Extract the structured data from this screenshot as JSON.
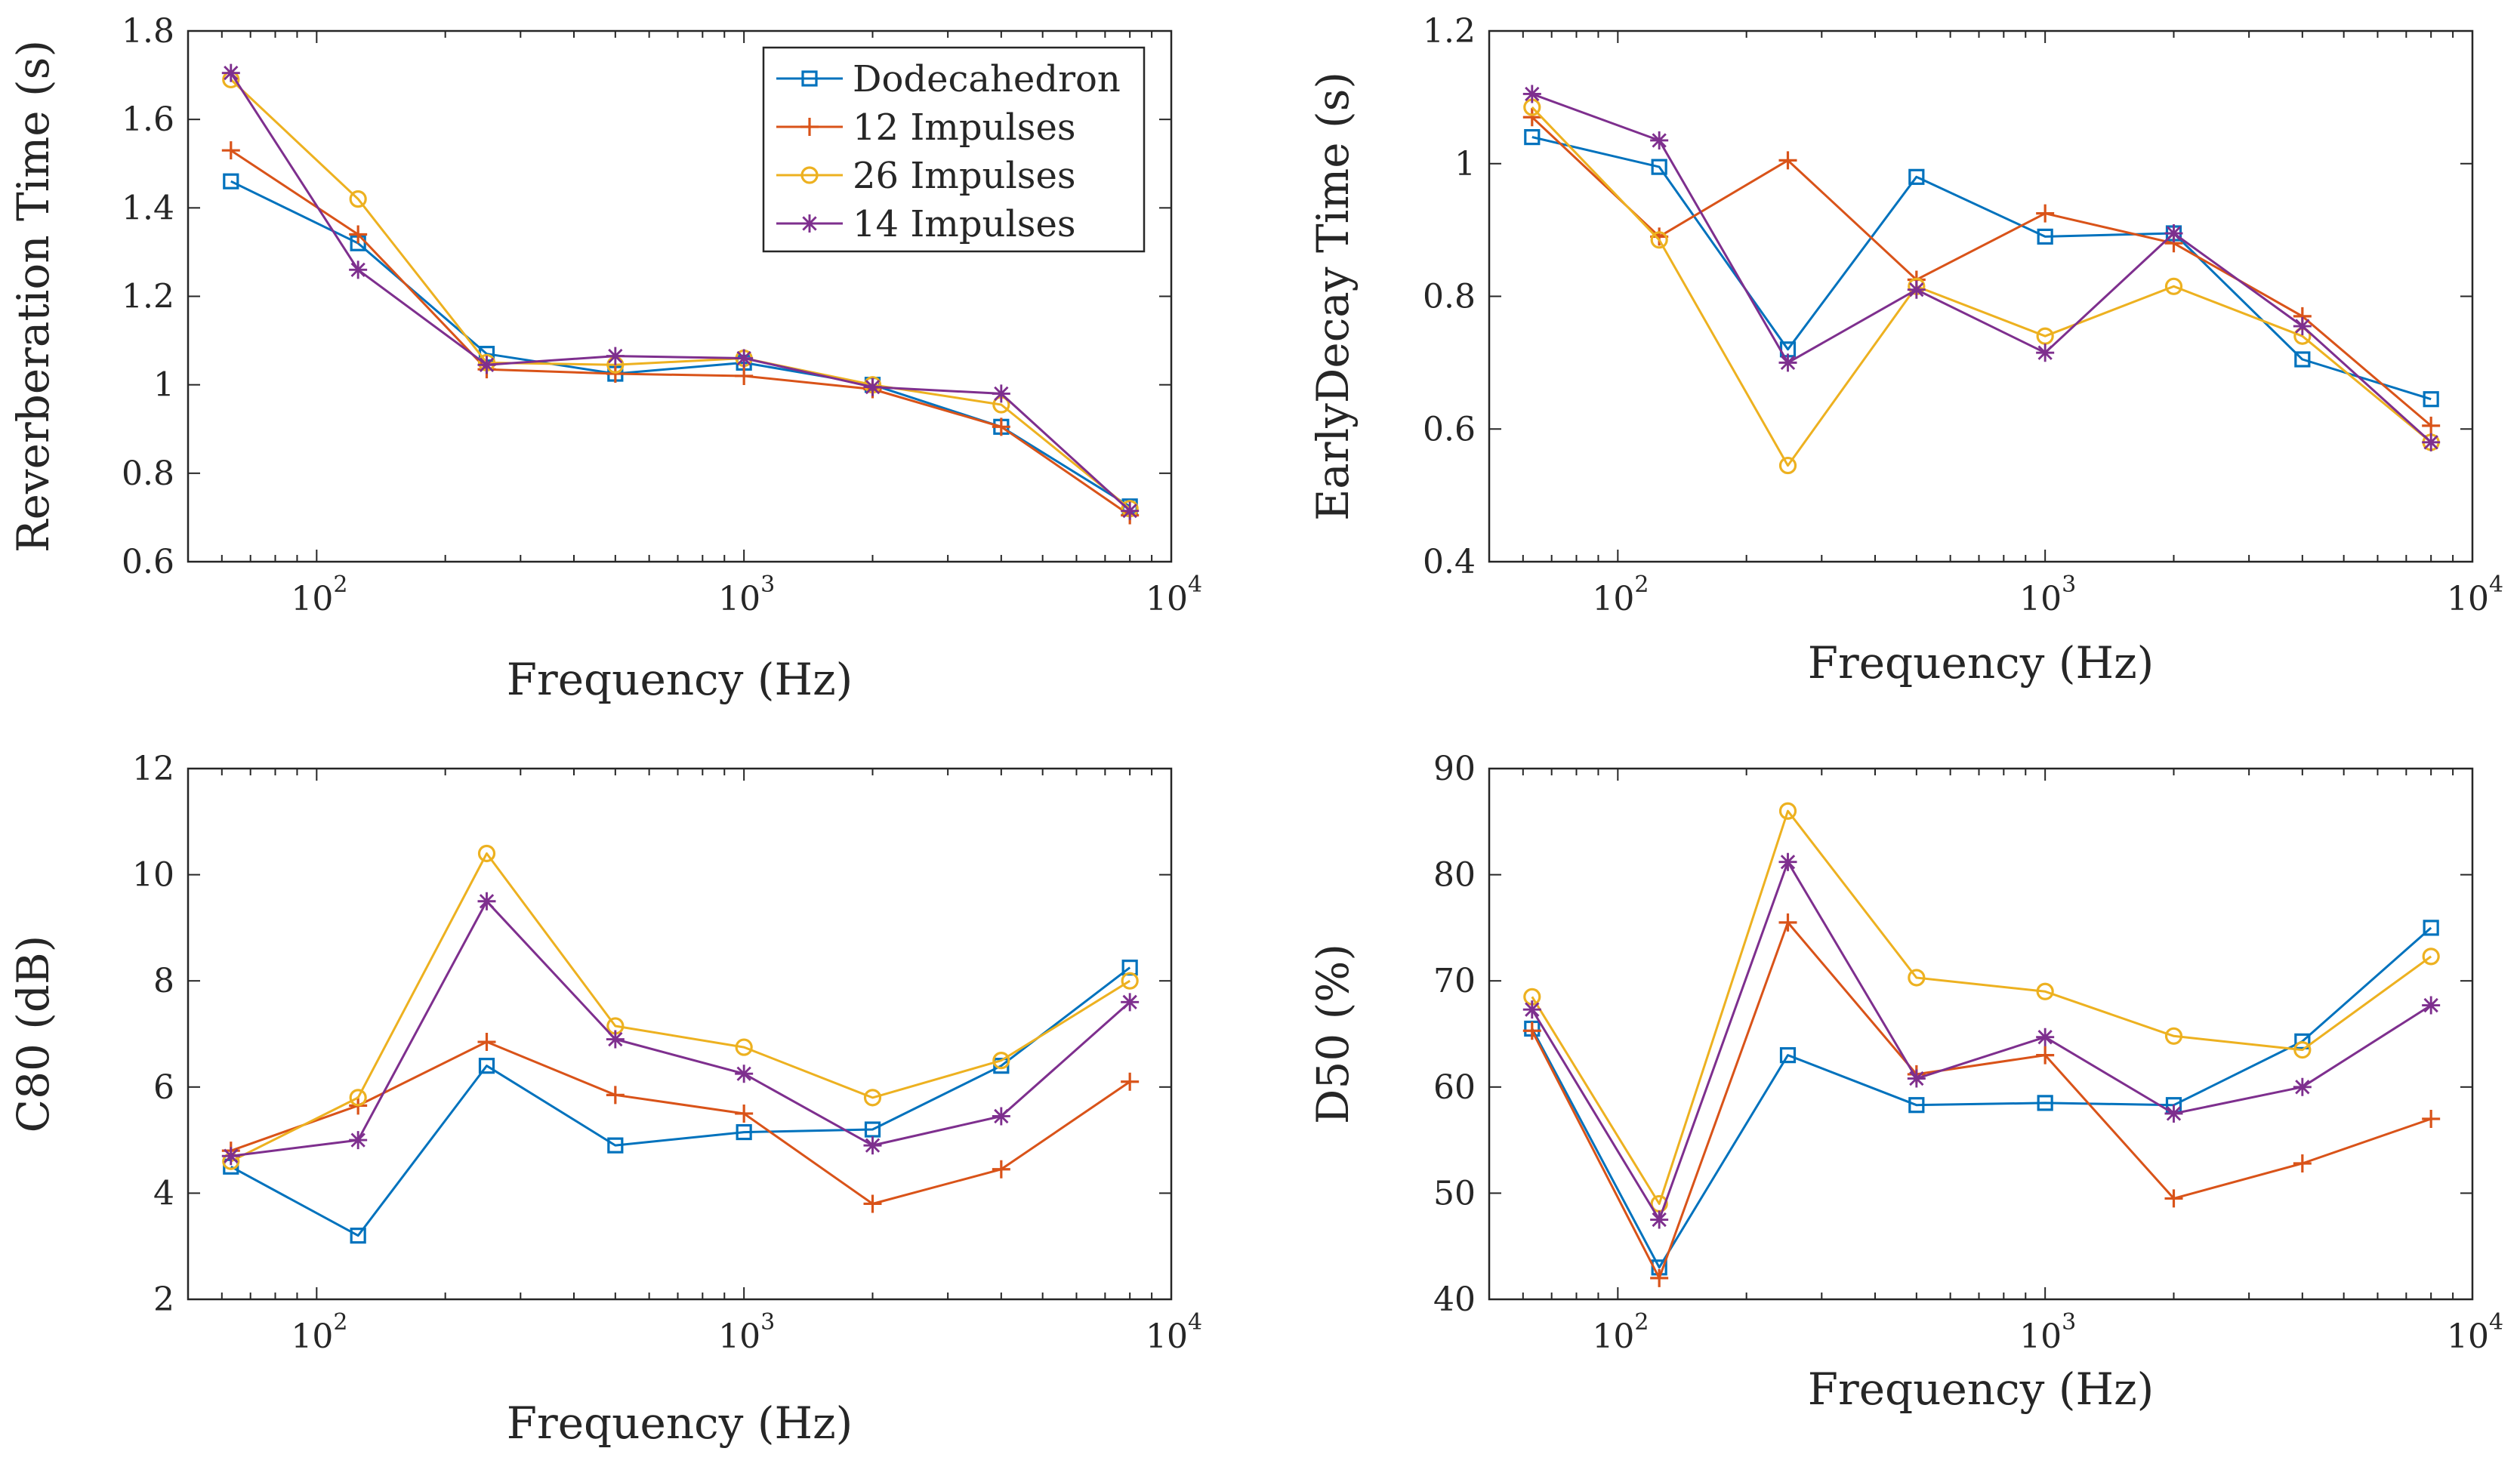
{
  "figure": {
    "description_free": true
  },
  "series_styles": [
    {
      "name": "Dodecahedron",
      "color": "#0072BD",
      "marker": "square"
    },
    {
      "name": "12 Impulses",
      "color": "#D95319",
      "marker": "plus"
    },
    {
      "name": "26 Impulses",
      "color": "#EDB120",
      "marker": "circle"
    },
    {
      "name": "14 Impulses",
      "color": "#7E2F8E",
      "marker": "asterisk"
    }
  ],
  "chart_data": [
    {
      "type": "line",
      "id": "rt",
      "xscale": "log",
      "x": [
        63,
        125,
        250,
        500,
        1000,
        2000,
        4000,
        8000
      ],
      "xlim": [
        50,
        10000
      ],
      "ylim": [
        0.6,
        1.8
      ],
      "yticks": [
        0.6,
        0.8,
        1,
        1.2,
        1.4,
        1.6,
        1.8
      ],
      "ytick_labels": [
        "0.6",
        "0.8",
        "1",
        "1.2",
        "1.4",
        "1.6",
        "1.8"
      ],
      "xticks": [
        100,
        1000,
        10000
      ],
      "xtick_base": "10",
      "xtick_exponents": [
        "2",
        "3",
        "4"
      ],
      "xlabel": "Frequency (Hz)",
      "ylabel": "Reverberation Time (s)",
      "legend": {
        "position": "top-right",
        "entries": [
          "Dodecahedron",
          "12 Impulses",
          "26 Impulses",
          "14 Impulses"
        ]
      },
      "series": [
        {
          "name": "Dodecahedron",
          "values": [
            1.46,
            1.32,
            1.07,
            1.025,
            1.05,
            1.0,
            0.905,
            0.725
          ]
        },
        {
          "name": "12 Impulses",
          "values": [
            1.53,
            1.34,
            1.035,
            1.025,
            1.02,
            0.99,
            0.905,
            0.705
          ]
        },
        {
          "name": "26 Impulses",
          "values": [
            1.69,
            1.42,
            1.05,
            1.045,
            1.06,
            1.0,
            0.955,
            0.72
          ]
        },
        {
          "name": "14 Impulses",
          "values": [
            1.705,
            1.26,
            1.045,
            1.065,
            1.06,
            0.995,
            0.98,
            0.715
          ]
        }
      ]
    },
    {
      "type": "line",
      "id": "edt",
      "xscale": "log",
      "x": [
        63,
        125,
        250,
        500,
        1000,
        2000,
        4000,
        8000
      ],
      "xlim": [
        50,
        10000
      ],
      "ylim": [
        0.4,
        1.2
      ],
      "yticks": [
        0.4,
        0.6,
        0.8,
        1,
        1.2
      ],
      "ytick_labels": [
        "0.4",
        "0.6",
        "0.8",
        "1",
        "1.2"
      ],
      "xticks": [
        100,
        1000,
        10000
      ],
      "xtick_base": "10",
      "xtick_exponents": [
        "2",
        "3",
        "4"
      ],
      "xlabel": "Frequency (Hz)",
      "ylabel": "EarlyDecay Time (s)",
      "series": [
        {
          "name": "Dodecahedron",
          "values": [
            1.04,
            0.995,
            0.72,
            0.98,
            0.89,
            0.895,
            0.705,
            0.645
          ]
        },
        {
          "name": "12 Impulses",
          "values": [
            1.07,
            0.89,
            1.005,
            0.825,
            0.925,
            0.88,
            0.77,
            0.605
          ]
        },
        {
          "name": "26 Impulses",
          "values": [
            1.085,
            0.885,
            0.545,
            0.815,
            0.74,
            0.815,
            0.74,
            0.58
          ]
        },
        {
          "name": "14 Impulses",
          "values": [
            1.105,
            1.035,
            0.7,
            0.81,
            0.715,
            0.895,
            0.755,
            0.58
          ]
        }
      ]
    },
    {
      "type": "line",
      "id": "c80",
      "xscale": "log",
      "x": [
        63,
        125,
        250,
        500,
        1000,
        2000,
        4000,
        8000
      ],
      "xlim": [
        50,
        10000
      ],
      "ylim": [
        2,
        12
      ],
      "yticks": [
        2,
        4,
        6,
        8,
        10,
        12
      ],
      "ytick_labels": [
        "2",
        "4",
        "6",
        "8",
        "10",
        "12"
      ],
      "xticks": [
        100,
        1000,
        10000
      ],
      "xtick_base": "10",
      "xtick_exponents": [
        "2",
        "3",
        "4"
      ],
      "xlabel": "Frequency (Hz)",
      "ylabel": "C80 (dB)",
      "series": [
        {
          "name": "Dodecahedron",
          "values": [
            4.5,
            3.2,
            6.4,
            4.9,
            5.15,
            5.2,
            6.4,
            8.25
          ]
        },
        {
          "name": "12 Impulses",
          "values": [
            4.8,
            5.65,
            6.85,
            5.85,
            5.5,
            3.8,
            4.45,
            6.1
          ]
        },
        {
          "name": "26 Impulses",
          "values": [
            4.6,
            5.8,
            10.4,
            7.15,
            6.75,
            5.8,
            6.5,
            8.0
          ]
        },
        {
          "name": "14 Impulses",
          "values": [
            4.7,
            5.0,
            9.5,
            6.9,
            6.25,
            4.9,
            5.45,
            7.6
          ]
        }
      ]
    },
    {
      "type": "line",
      "id": "d50",
      "xscale": "log",
      "x": [
        63,
        125,
        250,
        500,
        1000,
        2000,
        4000,
        8000
      ],
      "xlim": [
        50,
        10000
      ],
      "ylim": [
        40,
        90
      ],
      "yticks": [
        40,
        50,
        60,
        70,
        80,
        90
      ],
      "ytick_labels": [
        "40",
        "50",
        "60",
        "70",
        "80",
        "90"
      ],
      "xticks": [
        100,
        1000,
        10000
      ],
      "xtick_base": "10",
      "xtick_exponents": [
        "2",
        "3",
        "4"
      ],
      "xlabel": "Frequency (Hz)",
      "ylabel": "D50 (%)",
      "series": [
        {
          "name": "Dodecahedron",
          "values": [
            65.5,
            43.0,
            63.0,
            58.3,
            58.5,
            58.3,
            64.3,
            75.0
          ]
        },
        {
          "name": "12 Impulses",
          "values": [
            65.3,
            42.0,
            75.5,
            61.2,
            63.0,
            49.5,
            52.8,
            57.0
          ]
        },
        {
          "name": "26 Impulses",
          "values": [
            68.5,
            49.0,
            86.0,
            70.3,
            69.0,
            64.8,
            63.5,
            72.3
          ]
        },
        {
          "name": "14 Impulses",
          "values": [
            67.3,
            47.5,
            81.2,
            60.8,
            64.7,
            57.5,
            60.0,
            67.7
          ]
        }
      ]
    }
  ]
}
